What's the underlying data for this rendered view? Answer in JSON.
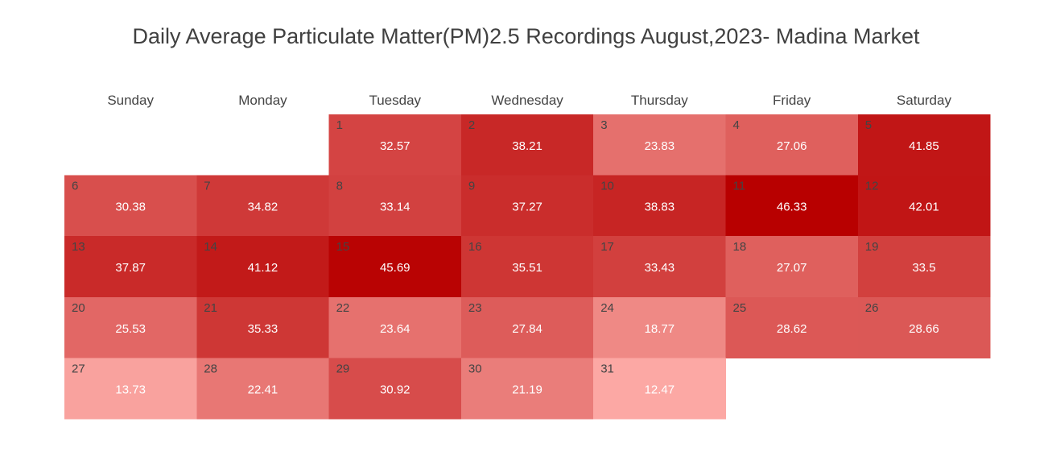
{
  "chart_data": {
    "type": "heatmap",
    "title": "Daily Average Particulate Matter(PM)2.5 Recordings August,2023- Madina Market",
    "weekdays": [
      "Sunday",
      "Monday",
      "Tuesday",
      "Wednesday",
      "Thursday",
      "Friday",
      "Saturday"
    ],
    "first_weekday_index": 2,
    "days": [
      1,
      2,
      3,
      4,
      5,
      6,
      7,
      8,
      9,
      10,
      11,
      12,
      13,
      14,
      15,
      16,
      17,
      18,
      19,
      20,
      21,
      22,
      23,
      24,
      25,
      26,
      27,
      28,
      29,
      30,
      31
    ],
    "values": [
      32.57,
      38.21,
      23.83,
      27.06,
      41.85,
      30.38,
      34.82,
      33.14,
      37.27,
      38.83,
      46.33,
      42.01,
      37.87,
      41.12,
      45.69,
      35.51,
      33.43,
      27.07,
      33.5,
      25.53,
      35.33,
      23.64,
      27.84,
      18.77,
      28.62,
      28.66,
      13.73,
      22.41,
      30.92,
      21.19,
      12.47
    ],
    "color_scale": {
      "low": "#fca8a4",
      "high": "#b80000"
    }
  }
}
